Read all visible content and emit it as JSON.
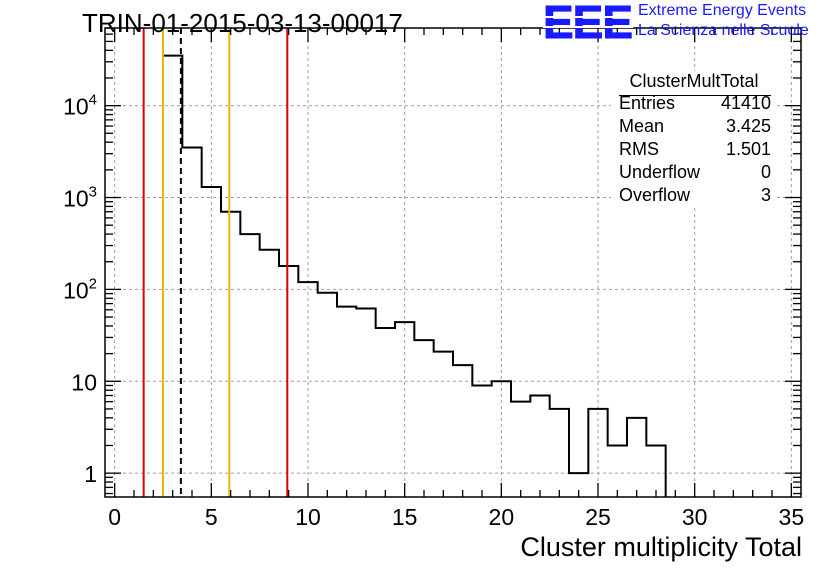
{
  "title": "TRIN-01-2015-03-13-00017",
  "logo": {
    "mark": "EEE",
    "line1": "Extreme Energy Events",
    "line2": "La Scienza nelle Scuole",
    "color": "#1a1aff"
  },
  "stats_box": {
    "name": "ClusterMultTotal",
    "rows": [
      {
        "key": "Entries",
        "value": "41410"
      },
      {
        "key": "Mean",
        "value": "3.425"
      },
      {
        "key": "RMS",
        "value": "1.501"
      },
      {
        "key": "Underflow",
        "value": "0"
      },
      {
        "key": "Overflow",
        "value": "3"
      }
    ]
  },
  "chart_data": {
    "type": "histogram",
    "xlabel": "Cluster multiplicity Total",
    "ylabel": "",
    "xlim": [
      -0.5,
      35.5
    ],
    "ylim": [
      0.55,
      70000
    ],
    "ylog": true,
    "grid": true,
    "x_ticks": [
      0,
      5,
      10,
      15,
      20,
      25,
      30,
      35
    ],
    "y_ticks": [
      {
        "value": 1,
        "label": "1"
      },
      {
        "value": 10,
        "label": "10"
      },
      {
        "value": 100,
        "label": "10^2"
      },
      {
        "value": 1000,
        "label": "10^3"
      },
      {
        "value": 10000,
        "label": "10^4"
      }
    ],
    "bin_width": 1,
    "bins": [
      {
        "x": 3,
        "y": 35000
      },
      {
        "x": 4,
        "y": 3500
      },
      {
        "x": 5,
        "y": 1300
      },
      {
        "x": 6,
        "y": 700
      },
      {
        "x": 7,
        "y": 400
      },
      {
        "x": 8,
        "y": 270
      },
      {
        "x": 9,
        "y": 180
      },
      {
        "x": 10,
        "y": 120
      },
      {
        "x": 11,
        "y": 92
      },
      {
        "x": 12,
        "y": 65
      },
      {
        "x": 13,
        "y": 62
      },
      {
        "x": 14,
        "y": 38
      },
      {
        "x": 15,
        "y": 44
      },
      {
        "x": 16,
        "y": 28
      },
      {
        "x": 17,
        "y": 21
      },
      {
        "x": 18,
        "y": 15
      },
      {
        "x": 19,
        "y": 9
      },
      {
        "x": 20,
        "y": 10
      },
      {
        "x": 21,
        "y": 6
      },
      {
        "x": 22,
        "y": 7
      },
      {
        "x": 23,
        "y": 5
      },
      {
        "x": 24,
        "y": 1
      },
      {
        "x": 25,
        "y": 5
      },
      {
        "x": 26,
        "y": 2
      },
      {
        "x": 27,
        "y": 4
      },
      {
        "x": 28,
        "y": 2
      }
    ],
    "vertical_lines": [
      {
        "x": 1.5,
        "color": "#dd0000",
        "style": "solid"
      },
      {
        "x": 2.5,
        "color": "#f0b400",
        "style": "solid"
      },
      {
        "x": 3.425,
        "color": "#000000",
        "style": "dashed"
      },
      {
        "x": 5.93,
        "color": "#f0b400",
        "style": "solid"
      },
      {
        "x": 8.93,
        "color": "#dd0000",
        "style": "solid"
      }
    ]
  }
}
